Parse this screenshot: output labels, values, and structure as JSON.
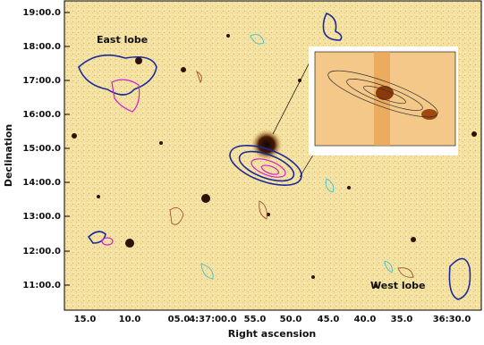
{
  "axes": {
    "x_label": "Right ascension",
    "y_label": "Declination",
    "x_ticks": [
      "15.0",
      "10.0",
      "05.0",
      "4:37:00.0",
      "55.0",
      "50.0",
      "45.0",
      "40.0",
      "35.0",
      "36:30.0"
    ],
    "y_ticks": [
      "19:00.0",
      "18:00.0",
      "17:00.0",
      "16:00.0",
      "15:00.0",
      "14:00.0",
      "13:00.0",
      "12:00.0",
      "11:00.0"
    ]
  },
  "annotations": {
    "east": "East lobe",
    "west": "West lobe"
  }
}
